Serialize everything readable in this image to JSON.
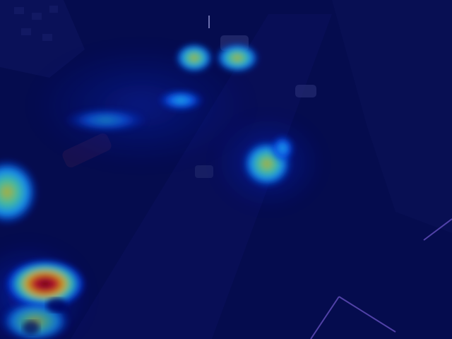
{
  "image": {
    "kind": "aerial-night-street-heatmap-overlay",
    "colormap": [
      "#00008b",
      "#0000ff",
      "#00ffff",
      "#ffff00",
      "#ff0000",
      "#8b0000"
    ],
    "colors": {
      "base": "#070b3c",
      "street": "#0a0f48",
      "building": "#0b1145",
      "road_marking": "#8a6ad8"
    }
  }
}
